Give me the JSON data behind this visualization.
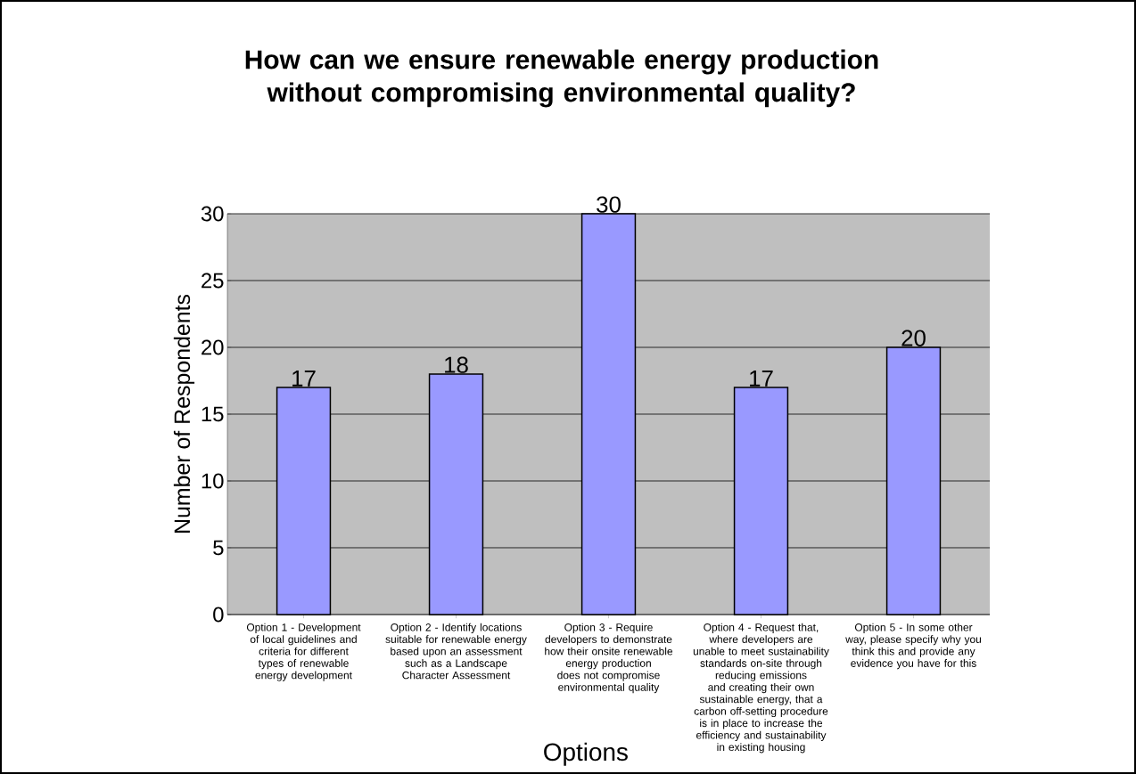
{
  "chart_data": {
    "type": "bar",
    "title": "How can we ensure renewable energy production without compromising environmental quality?",
    "xlabel": "Options",
    "ylabel": "Number of Respondents",
    "categories": [
      "Option 1 - Development of local guidelines and criteria for different types of renewable energy development",
      "Option 2 - Identify locations suitable for renewable energy based upon an assessment such as a Landscape Character Assessment",
      "Option 3 - Require developers to demonstrate how their onsite renewable energy production does not compromise environmental quality",
      "Option 4 - Request that, where developers are unable to meet sustainability standards on-site through reducing emissions and creating their own sustainable energy, that a carbon off-setting procedure is in place to increase the efficiency and sustainability in existing housing",
      "Option 5 - In some other way, please specify why you think this and provide any evidence you have for this"
    ],
    "values": [
      17,
      18,
      30,
      17,
      20
    ],
    "color": "#9999ff",
    "data_labels": true,
    "grid": "y",
    "ylim": [
      0,
      30
    ],
    "yticks": [
      0,
      5,
      10,
      15,
      20,
      25,
      30
    ]
  }
}
